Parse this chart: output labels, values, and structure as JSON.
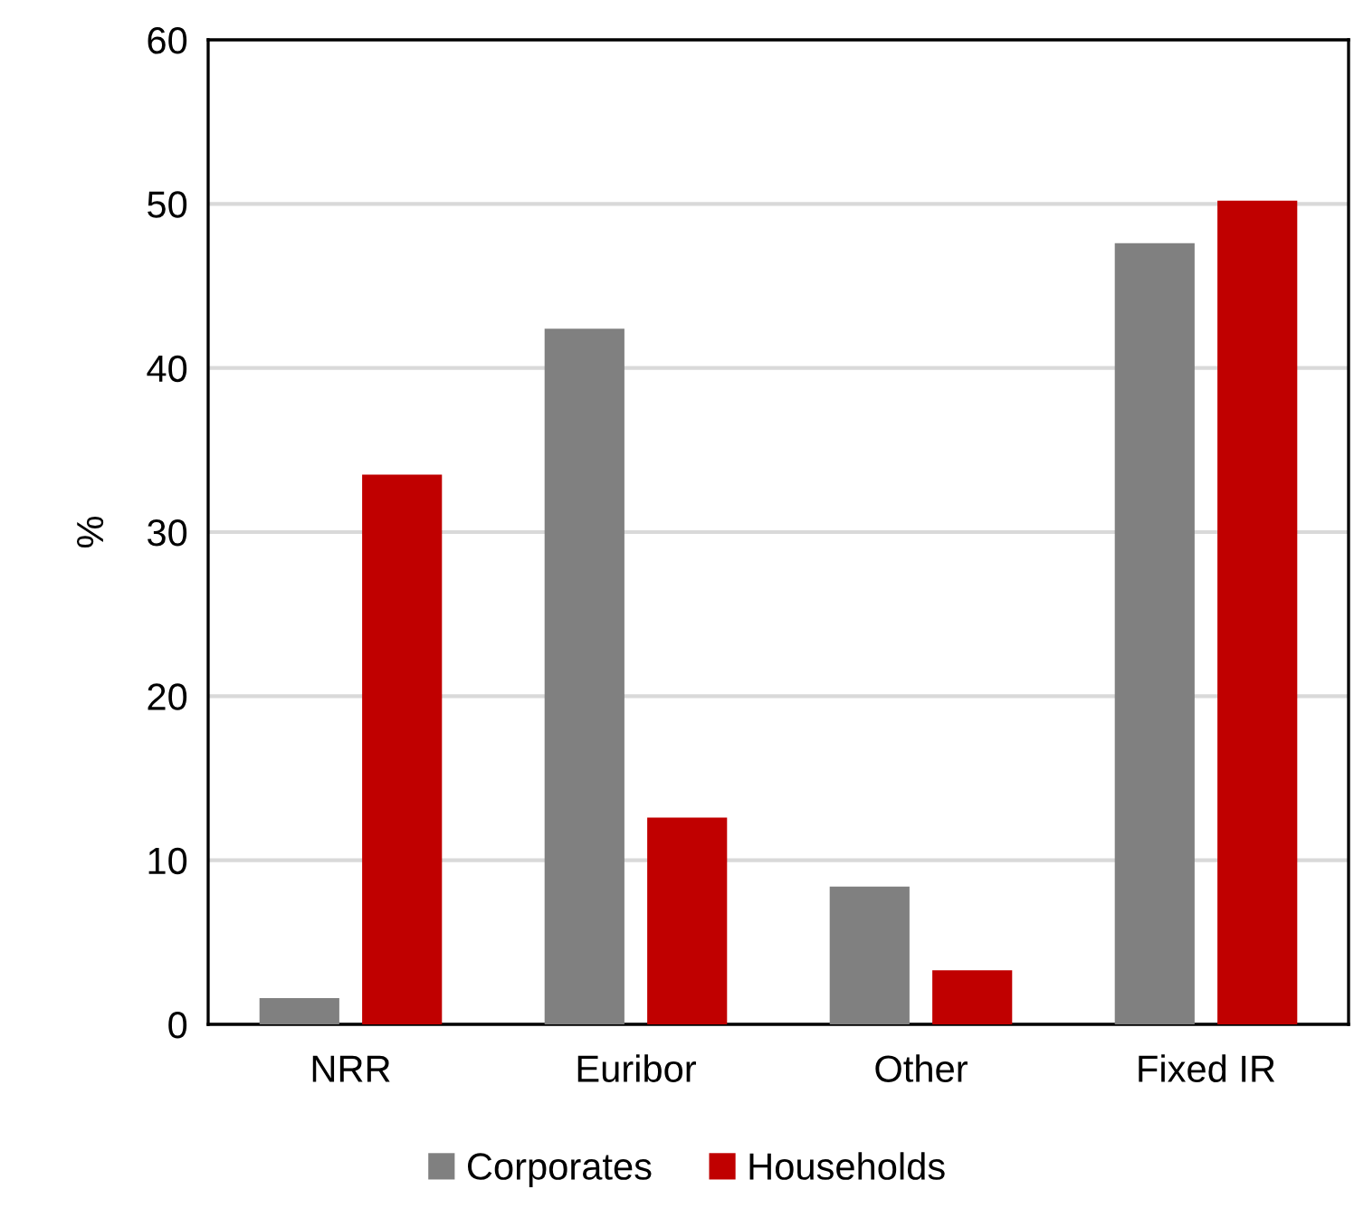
{
  "chart_data": {
    "type": "bar",
    "ylabel": "%",
    "categories": [
      "NRR",
      "Euribor",
      "Other",
      "Fixed IR"
    ],
    "series": [
      {
        "name": "Corporates",
        "color": "#808080",
        "values": [
          1.6,
          42.4,
          8.4,
          47.6
        ]
      },
      {
        "name": "Households",
        "color": "#c00000",
        "values": [
          33.5,
          12.6,
          3.3,
          50.2
        ]
      }
    ],
    "ylim": [
      0,
      60
    ],
    "yticks": [
      0,
      10,
      20,
      30,
      40,
      50,
      60
    ],
    "grid": "y",
    "legend": "bottom"
  }
}
